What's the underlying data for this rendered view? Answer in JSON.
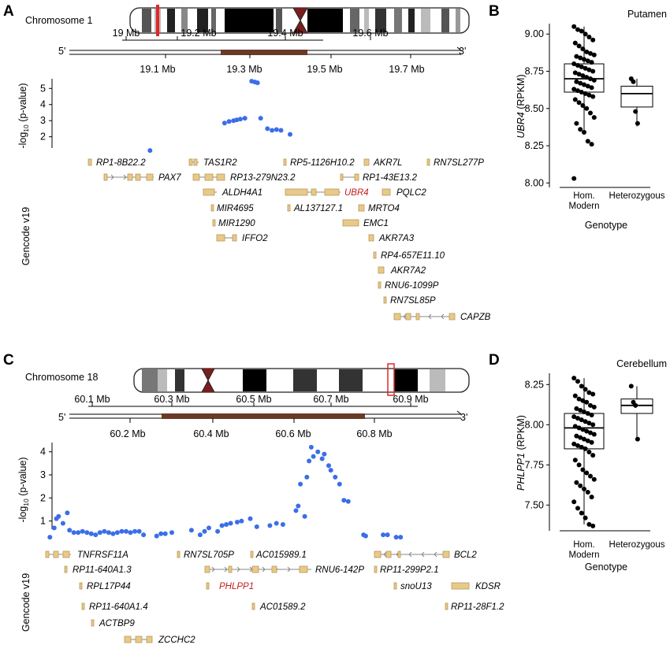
{
  "colors": {
    "dots": "#3b6ee8",
    "exon": "#e8c98a",
    "exon_edge": "#b89a55",
    "highlight": "#e02828",
    "bar": "#6b3a26",
    "gene_hi": "#c02020"
  },
  "chart_data": [
    {
      "panel": "A",
      "type": "scatter",
      "ideogram_title": "Chromosome 1",
      "top_ruler_ticks": [
        "19 Mb",
        "19.2 Mb",
        "19.4 Mb",
        "19.6 Mb"
      ],
      "ruler_ends": [
        "5'",
        "3'"
      ],
      "bottom_ruler_ticks": [
        "19.1 Mb",
        "19.3 Mb",
        "19.5 Mb",
        "19.7 Mb"
      ],
      "ylabel_main": "-log",
      "ylabel_sub": "10",
      "ylabel_tail": " (p-value)",
      "y_ticks": [
        "2",
        "3",
        "4",
        "5"
      ],
      "ylim": [
        1.3,
        5.6
      ],
      "xlim": [
        19.0,
        19.75
      ],
      "points": [
        [
          19.14,
          1.15
        ],
        [
          19.305,
          2.85
        ],
        [
          19.315,
          2.95
        ],
        [
          19.325,
          3.0
        ],
        [
          19.332,
          3.05
        ],
        [
          19.34,
          3.1
        ],
        [
          19.35,
          3.15
        ],
        [
          19.365,
          5.45
        ],
        [
          19.372,
          5.4
        ],
        [
          19.378,
          5.35
        ],
        [
          19.385,
          3.15
        ],
        [
          19.4,
          2.5
        ],
        [
          19.41,
          2.4
        ],
        [
          19.42,
          2.45
        ],
        [
          19.43,
          2.4
        ],
        [
          19.45,
          2.15
        ]
      ],
      "track_label": "Gencode v19",
      "genes": [
        "RP1-8B22.2",
        "PAX7",
        "TAS1R2",
        "RP13-279N23.2",
        "ALDH4A1",
        "MIR4695",
        "MIR1290",
        "IFFO2",
        "RP5-1126H10.2",
        "AL137127.1",
        "UBR4",
        "AKR7L",
        "RP1-43E13.2",
        "PQLC2",
        "MRTO4",
        "EMC1",
        "AKR7A3",
        "RP4-657E11.10",
        "AKR7A2",
        "RNU6-1099P",
        "RN7SL85P",
        "CAPZB",
        "RN7SL277P"
      ],
      "highlight_gene": "UBR4"
    },
    {
      "panel": "B",
      "type": "box",
      "title": "Putamen",
      "ylabel_gene": "UBR4",
      "ylabel_unit": " (RPKM)",
      "y_ticks": [
        "8.00",
        "8.25",
        "8.50",
        "8.75",
        "9.00"
      ],
      "ylim": [
        7.97,
        9.07
      ],
      "categories": [
        "Hom. Modern",
        "Heterozygous"
      ],
      "xlabel": "Genotype",
      "boxes": [
        {
          "q1": 8.61,
          "median": 8.7,
          "q3": 8.8,
          "whisker_low": 8.33,
          "whisker_high": 9.05
        },
        {
          "q1": 8.51,
          "median": 8.6,
          "q3": 8.65,
          "whisker_low": 8.38,
          "whisker_high": 8.7
        }
      ],
      "points": [
        [
          9.05,
          9.03,
          9.02,
          9.0,
          8.98,
          8.96,
          8.94,
          8.92,
          8.9,
          8.88,
          8.87,
          8.86,
          8.85,
          8.84,
          8.83,
          8.82,
          8.81,
          8.8,
          8.79,
          8.78,
          8.77,
          8.76,
          8.75,
          8.74,
          8.73,
          8.72,
          8.71,
          8.7,
          8.69,
          8.68,
          8.67,
          8.66,
          8.65,
          8.64,
          8.63,
          8.62,
          8.61,
          8.6,
          8.59,
          8.58,
          8.56,
          8.54,
          8.52,
          8.5,
          8.47,
          8.44,
          8.4,
          8.36,
          8.34,
          8.28,
          8.26,
          8.03
        ],
        [
          8.7,
          8.68,
          8.48,
          8.4
        ]
      ]
    },
    {
      "panel": "C",
      "type": "scatter",
      "ideogram_title": "Chromosome 18",
      "top_ruler_ticks": [
        "60.1 Mb",
        "60.3 Mb",
        "60.5 Mb",
        "60.7 Mb",
        "60.9 Mb"
      ],
      "ruler_ends": [
        "5'",
        "3'"
      ],
      "bottom_ruler_ticks": [
        "60.2 Mb",
        "60.4 Mb",
        "60.6 Mb",
        "60.8 Mb"
      ],
      "ylabel_main": "-log",
      "ylabel_sub": "10",
      "ylabel_tail": " (p-value)",
      "y_ticks": [
        "1",
        "2",
        "3",
        "4"
      ],
      "ylim": [
        0.2,
        4.4
      ],
      "xlim": [
        60.1,
        61.05
      ],
      "points": [
        [
          60.115,
          0.3
        ],
        [
          60.125,
          0.7
        ],
        [
          60.13,
          1.1
        ],
        [
          60.135,
          1.2
        ],
        [
          60.145,
          0.9
        ],
        [
          60.155,
          1.35
        ],
        [
          60.16,
          0.6
        ],
        [
          60.17,
          0.5
        ],
        [
          60.18,
          0.5
        ],
        [
          60.19,
          0.55
        ],
        [
          60.2,
          0.5
        ],
        [
          60.21,
          0.45
        ],
        [
          60.22,
          0.4
        ],
        [
          60.23,
          0.5
        ],
        [
          60.24,
          0.55
        ],
        [
          60.25,
          0.5
        ],
        [
          60.26,
          0.45
        ],
        [
          60.27,
          0.5
        ],
        [
          60.28,
          0.55
        ],
        [
          60.29,
          0.55
        ],
        [
          60.3,
          0.5
        ],
        [
          60.31,
          0.55
        ],
        [
          60.32,
          0.55
        ],
        [
          60.33,
          0.4
        ],
        [
          60.36,
          0.35
        ],
        [
          60.37,
          0.45
        ],
        [
          60.38,
          0.45
        ],
        [
          60.395,
          0.5
        ],
        [
          60.44,
          0.6
        ],
        [
          60.46,
          0.4
        ],
        [
          60.47,
          0.55
        ],
        [
          60.48,
          0.7
        ],
        [
          60.5,
          0.55
        ],
        [
          60.51,
          0.8
        ],
        [
          60.52,
          0.85
        ],
        [
          60.53,
          0.9
        ],
        [
          60.545,
          0.95
        ],
        [
          60.555,
          1.0
        ],
        [
          60.575,
          1.1
        ],
        [
          60.59,
          0.75
        ],
        [
          60.62,
          0.8
        ],
        [
          60.635,
          0.9
        ],
        [
          60.65,
          0.85
        ],
        [
          60.68,
          1.45
        ],
        [
          60.685,
          1.65
        ],
        [
          60.69,
          2.6
        ],
        [
          60.7,
          1.2
        ],
        [
          60.705,
          2.9
        ],
        [
          60.71,
          3.6
        ],
        [
          60.715,
          4.2
        ],
        [
          60.72,
          3.8
        ],
        [
          60.73,
          4.0
        ],
        [
          60.74,
          3.7
        ],
        [
          60.745,
          3.9
        ],
        [
          60.755,
          3.4
        ],
        [
          60.76,
          3.2
        ],
        [
          60.77,
          2.9
        ],
        [
          60.78,
          2.6
        ],
        [
          60.79,
          1.9
        ],
        [
          60.8,
          1.85
        ],
        [
          60.835,
          0.4
        ],
        [
          60.84,
          0.35
        ],
        [
          60.88,
          0.4
        ],
        [
          60.89,
          0.4
        ],
        [
          60.91,
          0.3
        ],
        [
          60.92,
          0.3
        ]
      ],
      "track_label": "Gencode v19",
      "genes": [
        "TNFRSF11A",
        "RP11-640A1.3",
        "RPL17P44",
        "RP11-640A1.4",
        "ACTBP9",
        "ZCCHC2",
        "RN7SL705P",
        "RNU6-142P",
        "AC015989.1",
        "AC01589.2",
        "PHLPP1",
        "BCL2",
        "RP11-299P2.1",
        "snoU13",
        "KDSR",
        "RP11-28F1.2"
      ],
      "highlight_gene": "PHLPP1"
    },
    {
      "panel": "D",
      "type": "box",
      "title": "Cerebellum",
      "ylabel_gene": "PHLPP1",
      "ylabel_unit": " (RPKM)",
      "y_ticks": [
        "7.50",
        "7.75",
        "8.00",
        "8.25"
      ],
      "ylim": [
        7.34,
        8.32
      ],
      "categories": [
        "Hom. Modern",
        "Heterozygous"
      ],
      "xlabel": "Genotype",
      "boxes": [
        {
          "q1": 7.85,
          "median": 7.98,
          "q3": 8.07,
          "whisker_low": 7.38,
          "whisker_high": 8.29
        },
        {
          "q1": 8.07,
          "median": 8.12,
          "q3": 8.16,
          "whisker_low": 7.91,
          "whisker_high": 8.24
        }
      ],
      "points": [
        [
          8.29,
          8.27,
          8.24,
          8.22,
          8.2,
          8.19,
          8.18,
          8.16,
          8.15,
          8.14,
          8.12,
          8.11,
          8.1,
          8.09,
          8.08,
          8.07,
          8.06,
          8.05,
          8.04,
          8.03,
          8.02,
          8.01,
          8.0,
          7.99,
          7.98,
          7.97,
          7.96,
          7.95,
          7.94,
          7.93,
          7.92,
          7.91,
          7.9,
          7.89,
          7.88,
          7.87,
          7.86,
          7.85,
          7.83,
          7.81,
          7.78,
          7.75,
          7.72,
          7.7,
          7.68,
          7.66,
          7.64,
          7.62,
          7.6,
          7.58,
          7.55,
          7.52,
          7.48,
          7.45,
          7.42,
          7.38,
          7.37
        ],
        [
          8.24,
          8.14,
          8.12,
          7.91
        ]
      ]
    }
  ]
}
